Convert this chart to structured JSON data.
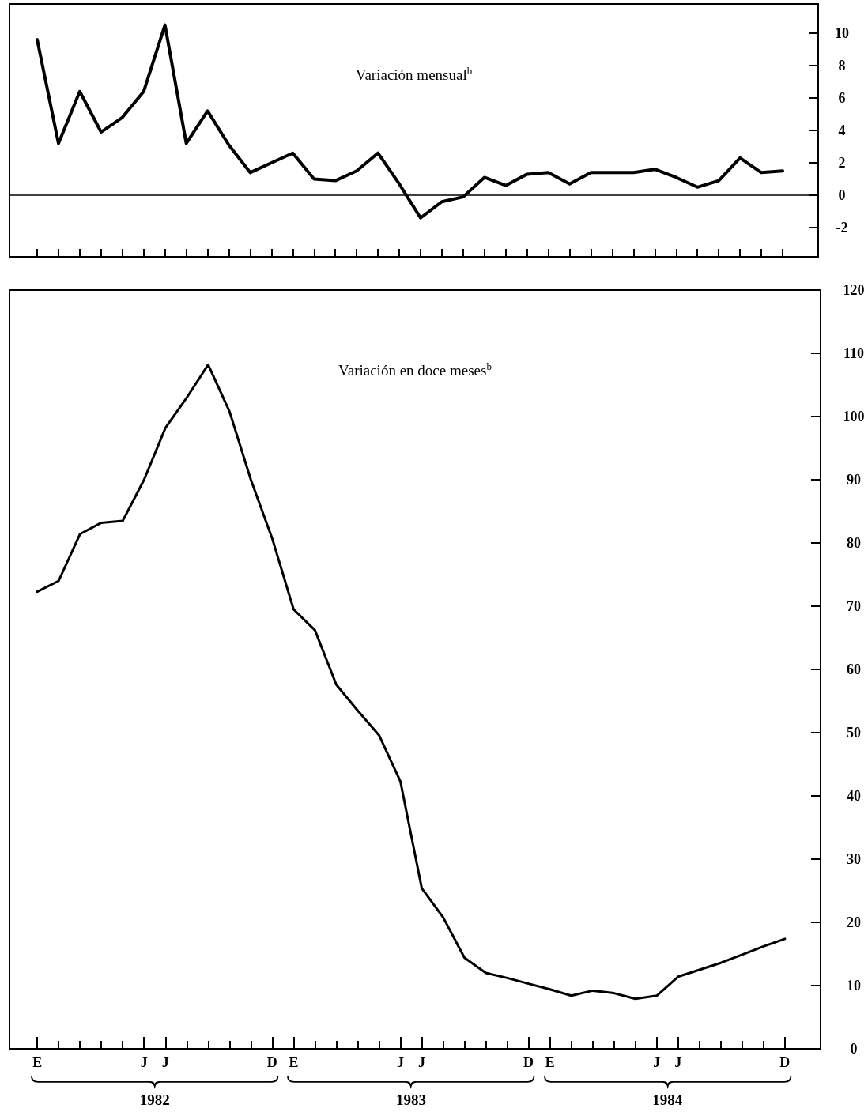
{
  "chart_data": [
    {
      "type": "line",
      "title": "Variación mensual$^{b}$",
      "categories": [
        null,
        null,
        null,
        null,
        null,
        null,
        null,
        null,
        null,
        null,
        null,
        null,
        null,
        null,
        null,
        null,
        null,
        null,
        null,
        null,
        null,
        null,
        null,
        null,
        null,
        null,
        null,
        null,
        null,
        null,
        null,
        null,
        null,
        null,
        null,
        null
      ],
      "series": [
        {
          "color": "#000000",
          "values": [
            9.6,
            3.2,
            6.4,
            3.9,
            4.8,
            6.4,
            10.5,
            3.2,
            5.2,
            3.1,
            1.4,
            2.0,
            2.6,
            1.0,
            0.9,
            1.5,
            2.6,
            0.7,
            -1.4,
            -0.4,
            -0.1,
            1.1,
            0.6,
            1.3,
            1.4,
            0.7,
            1.4,
            1.4,
            1.4,
            1.6,
            1.1,
            0.5,
            0.9,
            2.3,
            1.4,
            1.5
          ]
        }
      ],
      "ylim": [
        -3.8,
        11.8
      ],
      "yticks": [
        -2,
        0,
        2,
        4,
        6,
        8,
        10
      ],
      "ref_lines": [
        {
          "axis": "y",
          "value": 0
        }
      ],
      "tick_labels": "y"
    },
    {
      "type": "line",
      "title": "Variación en doce meses$^{b}$",
      "categories": [
        "E",
        null,
        null,
        null,
        null,
        "J",
        "J",
        null,
        null,
        null,
        null,
        "D",
        "E",
        null,
        null,
        null,
        null,
        "J",
        "J",
        null,
        null,
        null,
        null,
        "D",
        "E",
        null,
        null,
        null,
        null,
        "J",
        "J",
        null,
        null,
        null,
        null,
        "D"
      ],
      "series": [
        {
          "color": "#000000",
          "values": [
            72.3,
            74.0,
            81.4,
            83.2,
            83.5,
            90.0,
            98.2,
            103.0,
            108.2,
            100.8,
            90.0,
            80.7,
            69.5,
            66.2,
            57.6,
            53.5,
            49.6,
            42.3,
            25.4,
            20.8,
            14.4,
            12.0,
            11.2,
            10.3,
            9.4,
            8.4,
            9.2,
            8.8,
            7.9,
            8.4,
            11.4,
            12.5,
            13.6,
            14.9,
            16.2,
            17.4
          ]
        }
      ],
      "ylim": [
        0,
        120
      ],
      "yticks": [
        0,
        10,
        20,
        30,
        40,
        50,
        60,
        70,
        80,
        90,
        100,
        110,
        120
      ],
      "annotations": [
        "1982",
        "1983",
        "1984"
      ]
    }
  ]
}
